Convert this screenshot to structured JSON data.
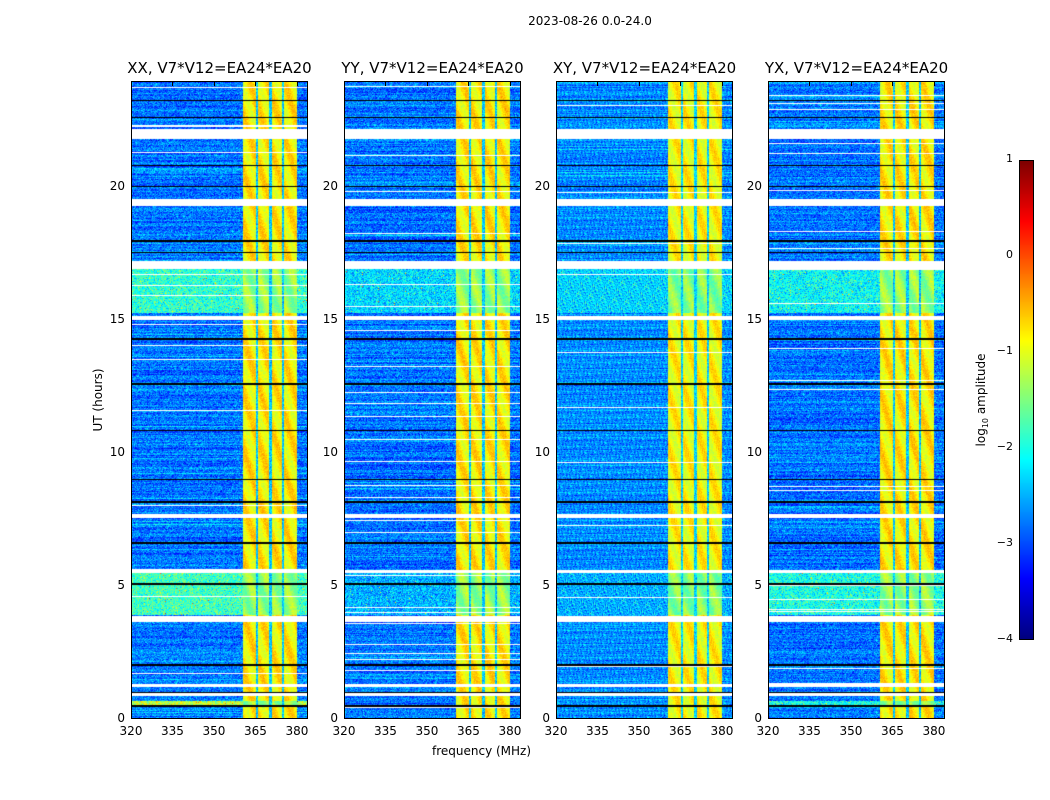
{
  "chart_data": {
    "type": "heatmap",
    "title": "2023-08-26 0.0-24.0",
    "xlabel": "frequency (MHz)",
    "ylabel": "UT (hours)",
    "xlim": [
      320,
      384
    ],
    "ylim": [
      0,
      24
    ],
    "xticks": [
      "320",
      "335",
      "350",
      "365",
      "380"
    ],
    "yticks": [
      "0",
      "5",
      "10",
      "15",
      "20"
    ],
    "colorbar": {
      "label": "log10 amplitude",
      "label_main": "log",
      "label_sub": "10",
      "label_rest": " amplitude",
      "range": [
        -4,
        1
      ],
      "ticks": [
        "1",
        "0",
        "−1",
        "−2",
        "−3",
        "−4"
      ],
      "colormap": "jet"
    },
    "background_level": -2.8,
    "rfi_band_mhz": [
      360.5,
      380
    ],
    "rfi_band_level": -0.9,
    "rfi_band_gaps_mhz": [
      365.5,
      370.5,
      375
    ],
    "flagged_hours_white": [
      [
        21.85,
        22.25
      ],
      [
        19.35,
        19.6
      ],
      [
        16.95,
        17.25
      ],
      [
        15.05,
        15.2
      ],
      [
        7.55,
        7.7
      ],
      [
        5.5,
        5.62
      ],
      [
        3.65,
        3.85
      ],
      [
        1.2,
        1.3
      ],
      [
        0.85,
        0.95
      ]
    ],
    "flagged_hours_black": [
      [
        23.3,
        23.35
      ],
      [
        22.65,
        22.7
      ],
      [
        20.85,
        20.9
      ],
      [
        20.05,
        20.1
      ],
      [
        18.0,
        18.05
      ],
      [
        17.55,
        17.6
      ],
      [
        14.3,
        14.35
      ],
      [
        12.6,
        12.65
      ],
      [
        10.85,
        10.9
      ],
      [
        9.0,
        9.05
      ],
      [
        8.15,
        8.2
      ],
      [
        6.6,
        6.65
      ],
      [
        5.05,
        5.1
      ],
      [
        2.0,
        2.05
      ],
      [
        0.95,
        1.0
      ],
      [
        0.45,
        0.5
      ]
    ],
    "panels": [
      {
        "title": "XX, V7*V12=EA24*EA20",
        "broadband_hours": [
          [
            15.3,
            17.0,
            -1.9
          ],
          [
            3.9,
            5.5,
            -1.8
          ],
          [
            0.5,
            0.65,
            -1.2
          ]
        ]
      },
      {
        "title": "YY, V7*V12=EA24*EA20",
        "broadband_hours": [
          [
            15.3,
            17.0,
            -2.3
          ],
          [
            3.9,
            5.5,
            -2.5
          ]
        ]
      },
      {
        "title": "XY, V7*V12=EA24*EA20",
        "broadband_hours": [
          [
            15.3,
            17.0,
            -2.4
          ],
          [
            3.9,
            5.5,
            -2.6
          ]
        ]
      },
      {
        "title": "YX, V7*V12=EA24*EA20",
        "broadband_hours": [
          [
            15.3,
            17.0,
            -2.1
          ],
          [
            3.9,
            5.5,
            -2.0
          ],
          [
            0.5,
            0.65,
            -2.0
          ]
        ]
      }
    ]
  }
}
